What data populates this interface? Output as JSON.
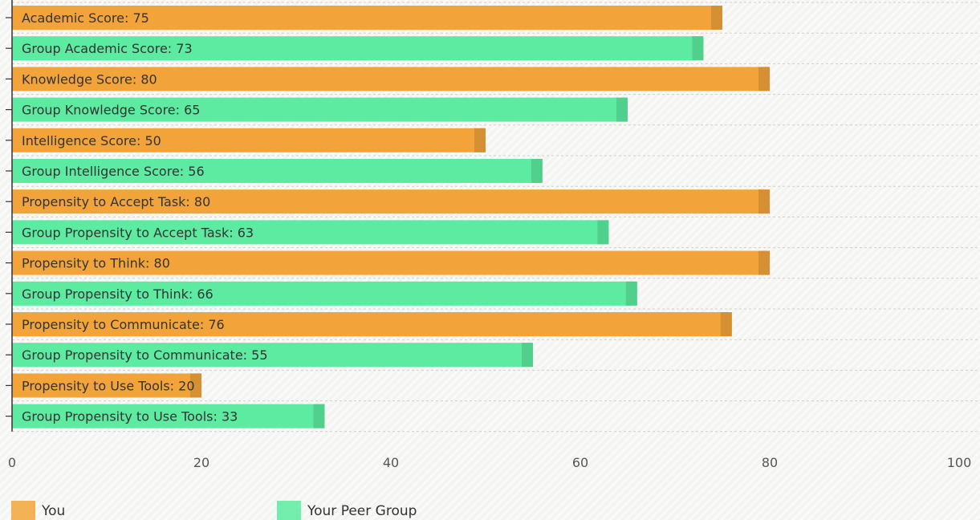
{
  "chart_data": {
    "type": "bar",
    "orientation": "horizontal",
    "xlim": [
      0,
      100
    ],
    "x_ticks": [
      "0",
      "20",
      "40",
      "60",
      "80",
      "100"
    ],
    "grid": true,
    "legend_position": "bottom-left",
    "colors": {
      "You": "#f2a43a",
      "Your Peer Group": "#5ceba0"
    },
    "bars": [
      {
        "label": "Academic Score: 75",
        "value": 75,
        "series": "You"
      },
      {
        "label": "Group Academic Score: 73",
        "value": 73,
        "series": "Your Peer Group"
      },
      {
        "label": "Knowledge Score: 80",
        "value": 80,
        "series": "You"
      },
      {
        "label": "Group Knowledge Score: 65",
        "value": 65,
        "series": "Your Peer Group"
      },
      {
        "label": "Intelligence Score: 50",
        "value": 50,
        "series": "You"
      },
      {
        "label": "Group Intelligence Score: 56",
        "value": 56,
        "series": "Your Peer Group"
      },
      {
        "label": "Propensity to Accept Task: 80",
        "value": 80,
        "series": "You"
      },
      {
        "label": "Group Propensity to Accept Task: 63",
        "value": 63,
        "series": "Your Peer Group"
      },
      {
        "label": "Propensity to Think: 80",
        "value": 80,
        "series": "You"
      },
      {
        "label": "Group Propensity to Think: 66",
        "value": 66,
        "series": "Your Peer Group"
      },
      {
        "label": "Propensity to Communicate: 76",
        "value": 76,
        "series": "You"
      },
      {
        "label": "Group Propensity to Communicate: 55",
        "value": 55,
        "series": "Your Peer Group"
      },
      {
        "label": "Propensity to Use Tools: 20",
        "value": 20,
        "series": "You"
      },
      {
        "label": "Group Propensity to Use Tools: 33",
        "value": 33,
        "series": "Your Peer Group"
      }
    ],
    "legend": [
      {
        "name": "You",
        "color": "#f2a43a"
      },
      {
        "name": "Your Peer Group",
        "color": "#5ceba0"
      }
    ]
  }
}
